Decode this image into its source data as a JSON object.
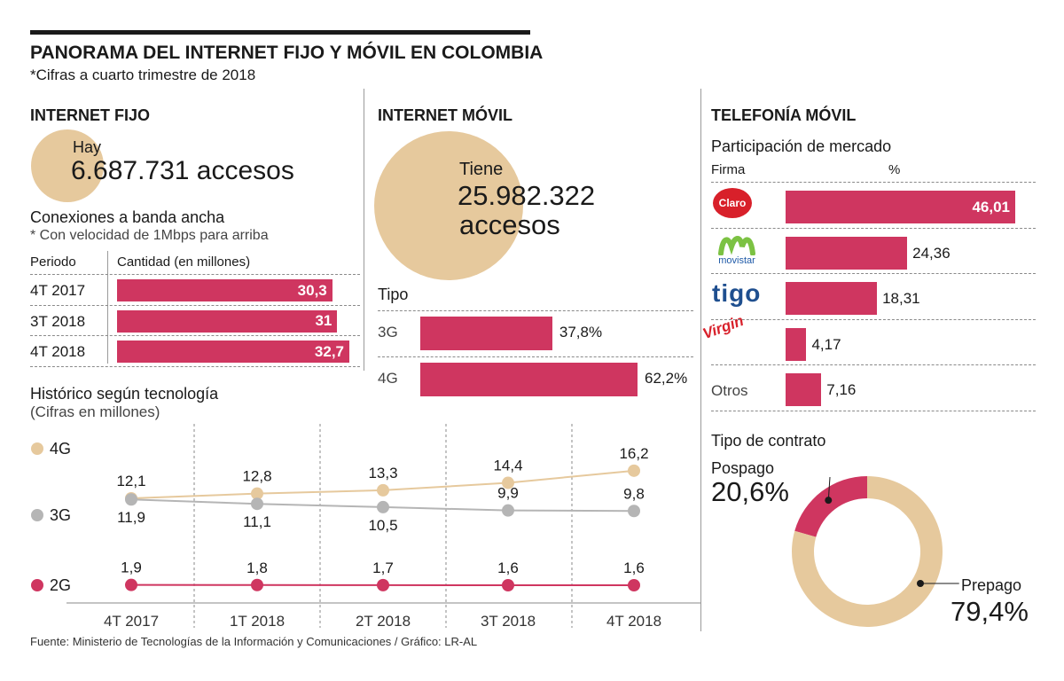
{
  "title": "PANORAMA DEL INTERNET FIJO Y MÓVIL EN COLOMBIA",
  "subtitle": "*Cifras a cuarto trimestre de 2018",
  "source": "Fuente: Ministerio de Tecnologías de la Información y Comunicaciones / Gráfico: LR-AL",
  "colors": {
    "accent": "#cf3660",
    "beige": "#e6c99d",
    "gray": "#b5b5b5",
    "text": "#1a1a1a"
  },
  "internet_fijo": {
    "heading": "INTERNET FIJO",
    "hay": "Hay",
    "accesos": "6.687.731 accesos",
    "conexiones_title": "Conexiones a banda ancha",
    "conexiones_note": "* Con velocidad de 1Mbps para arriba",
    "col_periodo": "Periodo",
    "col_cantidad": "Cantidad (en millones)"
  },
  "internet_movil": {
    "heading": "INTERNET MÓVIL",
    "tiene": "Tiene",
    "accesos_num": "25.982.322",
    "accesos_word": "accesos",
    "tipo_label": "Tipo"
  },
  "telefonia": {
    "heading": "TELEFONÍA MÓVIL",
    "participacion": "Participación de mercado",
    "col_firma": "Firma",
    "col_pct": "%",
    "logo_claro": "Claro",
    "logo_movistar": "movistar",
    "logo_tigo": "tigo",
    "logo_virgin": "Virgin",
    "contrato_title": "Tipo de contrato"
  },
  "historico": {
    "title": "Histórico según tecnología",
    "note": "(Cifras en millones)"
  },
  "chart_data": [
    {
      "type": "bar",
      "title": "Conexiones a banda ancha",
      "categories": [
        "4T 2017",
        "3T 2018",
        "4T 2018"
      ],
      "values": [
        30.3,
        31,
        32.7
      ],
      "labels": [
        "30,3",
        "31",
        "32,7"
      ]
    },
    {
      "type": "bar",
      "title": "Tipo",
      "categories": [
        "3G",
        "4G"
      ],
      "values": [
        37.8,
        62.2
      ],
      "labels": [
        "37,8%",
        "62,2%"
      ]
    },
    {
      "type": "bar",
      "title": "Participación de mercado",
      "categories": [
        "Claro",
        "Movistar",
        "Tigo",
        "Virgin",
        "Otros"
      ],
      "values": [
        46.01,
        24.36,
        18.31,
        4.17,
        7.16
      ],
      "labels": [
        "46,01",
        "24,36",
        "18,31",
        "4,17",
        "7,16"
      ]
    },
    {
      "type": "line",
      "title": "Histórico según tecnología",
      "categories": [
        "4T 2017",
        "1T 2018",
        "2T 2018",
        "3T 2018",
        "4T 2018"
      ],
      "series": [
        {
          "name": "4G",
          "color": "#e6c99d",
          "values": [
            12.1,
            12.8,
            13.3,
            14.4,
            16.2
          ],
          "labels": [
            "12,1",
            "12,8",
            "13,3",
            "14,4",
            "16,2"
          ]
        },
        {
          "name": "3G",
          "color": "#b5b5b5",
          "values": [
            11.9,
            11.1,
            10.5,
            9.9,
            9.8
          ],
          "labels": [
            "11,9",
            "11,1",
            "10,5",
            "9,9",
            "9,8"
          ]
        },
        {
          "name": "2G",
          "color": "#cf3660",
          "values": [
            1.9,
            1.8,
            1.7,
            1.6,
            1.6
          ],
          "labels": [
            "1,9",
            "1,8",
            "1,7",
            "1,6",
            "1,6"
          ]
        }
      ]
    },
    {
      "type": "pie",
      "title": "Tipo de contrato",
      "categories": [
        "Pospago",
        "Prepago"
      ],
      "values": [
        20.6,
        79.4
      ],
      "labels": [
        "20,6%",
        "79,4%"
      ],
      "colors": [
        "#cf3660",
        "#e6c99d"
      ]
    }
  ]
}
